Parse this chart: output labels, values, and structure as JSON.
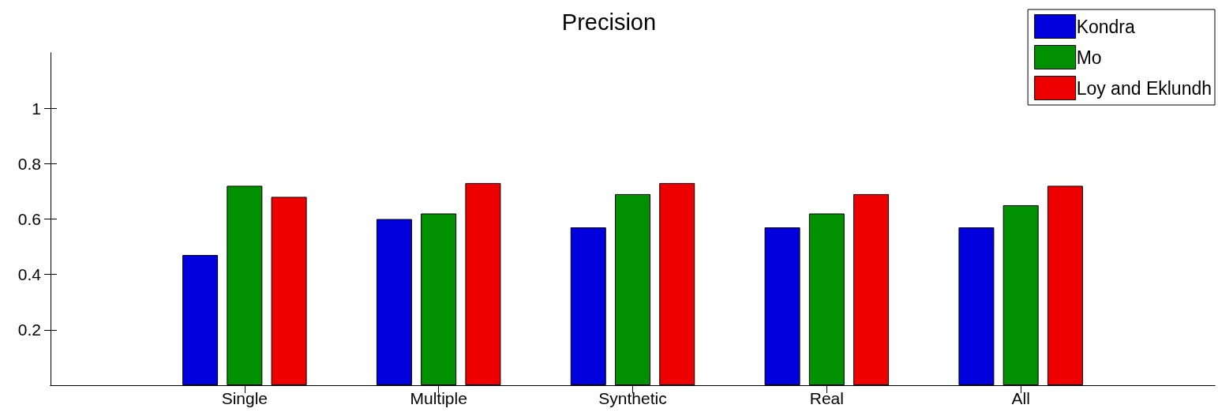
{
  "chart_data": {
    "type": "bar",
    "title": "Precision",
    "categories": [
      "Single",
      "Multiple",
      "Synthetic",
      "Real",
      "All"
    ],
    "series": [
      {
        "name": "Kondra",
        "color": "#0000dd",
        "values": [
          0.47,
          0.6,
          0.57,
          0.57,
          0.57
        ]
      },
      {
        "name": "Mo",
        "color": "#009000",
        "values": [
          0.72,
          0.62,
          0.69,
          0.62,
          0.65
        ]
      },
      {
        "name": "Loy and Eklundh",
        "color": "#ee0000",
        "values": [
          0.68,
          0.73,
          0.73,
          0.69,
          0.72
        ]
      }
    ],
    "ylim": [
      0,
      1.2
    ],
    "yticks": [
      0.2,
      0.4,
      0.6,
      0.8,
      1
    ],
    "grid": false,
    "legend": "top right"
  }
}
